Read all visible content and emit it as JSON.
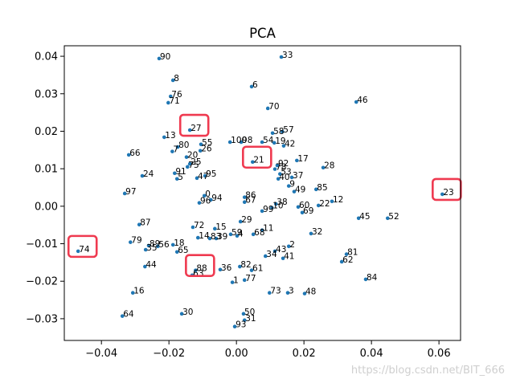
{
  "watermark": "https://blog.csdn.net/BIT_666",
  "chart_data": {
    "type": "scatter",
    "title": "PCA",
    "xlabel": "",
    "ylabel": "",
    "xlim": [
      -0.051,
      0.0664
    ],
    "ylim": [
      -0.0358,
      0.0428
    ],
    "grid": false,
    "point_color": "#1f77b4",
    "highlight_color": "#ef3a50",
    "x_ticks": {
      "values": [
        -0.04,
        -0.02,
        0.0,
        0.02,
        0.04,
        0.06
      ],
      "labels": [
        "−0.04",
        "−0.02",
        "0.00",
        "0.02",
        "0.04",
        "0.06"
      ]
    },
    "y_ticks": {
      "values": [
        -0.03,
        -0.02,
        -0.01,
        0.0,
        0.01,
        0.02,
        0.03,
        0.04
      ],
      "labels": [
        "−0.03",
        "−0.02",
        "−0.01",
        "0.00",
        "0.01",
        "0.02",
        "0.03",
        "0.04"
      ]
    },
    "points": [
      {
        "label": "0",
        "x": -0.0095,
        "y": 0.0028
      },
      {
        "label": "1",
        "x": -0.0012,
        "y": -0.0203
      },
      {
        "label": "2",
        "x": 0.0155,
        "y": -0.0107
      },
      {
        "label": "3",
        "x": 0.0152,
        "y": -0.0231
      },
      {
        "label": "4",
        "x": 0.0002,
        "y": -0.0079
      },
      {
        "label": "5",
        "x": -0.0176,
        "y": 0.0073
      },
      {
        "label": "6",
        "x": 0.0045,
        "y": 0.0319
      },
      {
        "label": "7",
        "x": -0.019,
        "y": 0.0146
      },
      {
        "label": "8",
        "x": -0.0188,
        "y": 0.0336
      },
      {
        "label": "9",
        "x": 0.0155,
        "y": 0.0054
      },
      {
        "label": "10",
        "x": 0.0105,
        "y": -0.0004
      },
      {
        "label": "11",
        "x": 0.0076,
        "y": -0.0064
      },
      {
        "label": "12",
        "x": 0.0283,
        "y": 0.0013
      },
      {
        "label": "13",
        "x": -0.0214,
        "y": 0.0184
      },
      {
        "label": "14",
        "x": -0.0114,
        "y": -0.0084
      },
      {
        "label": "15",
        "x": -0.0064,
        "y": -0.006
      },
      {
        "label": "16",
        "x": -0.0307,
        "y": -0.0231
      },
      {
        "label": "17",
        "x": 0.0179,
        "y": 0.0122
      },
      {
        "label": "18",
        "x": -0.0188,
        "y": -0.0103
      },
      {
        "label": "19",
        "x": 0.0112,
        "y": 0.0169
      },
      {
        "label": "20",
        "x": -0.0148,
        "y": 0.0131
      },
      {
        "label": "21",
        "x": 0.0048,
        "y": 0.0118,
        "highlighted": true
      },
      {
        "label": "22",
        "x": 0.0243,
        "y": 0.0002
      },
      {
        "label": "23",
        "x": 0.061,
        "y": 0.0032,
        "highlighted": true
      },
      {
        "label": "24",
        "x": -0.0279,
        "y": 0.0081
      },
      {
        "label": "25",
        "x": -0.0138,
        "y": 0.0113
      },
      {
        "label": "26",
        "x": -0.0107,
        "y": 0.0148
      },
      {
        "label": "27",
        "x": -0.0138,
        "y": 0.0203,
        "highlighted": true
      },
      {
        "label": "28",
        "x": 0.0257,
        "y": 0.0103
      },
      {
        "label": "29",
        "x": 0.0012,
        "y": -0.0041
      },
      {
        "label": "30",
        "x": -0.0162,
        "y": -0.0287
      },
      {
        "label": "31",
        "x": 0.0024,
        "y": -0.0304
      },
      {
        "label": "32",
        "x": 0.0221,
        "y": -0.0073
      },
      {
        "label": "33",
        "x": 0.0133,
        "y": 0.0398
      },
      {
        "label": "34",
        "x": 0.0086,
        "y": -0.0133
      },
      {
        "label": "35",
        "x": -0.0269,
        "y": -0.0116
      },
      {
        "label": "36",
        "x": -0.0048,
        "y": -0.0169
      },
      {
        "label": "37",
        "x": 0.0164,
        "y": 0.0077
      },
      {
        "label": "38",
        "x": 0.0117,
        "y": 0.0006
      },
      {
        "label": "39",
        "x": -0.006,
        "y": -0.0086
      },
      {
        "label": "40",
        "x": 0.0124,
        "y": 0.0073
      },
      {
        "label": "41",
        "x": 0.0138,
        "y": -0.0139
      },
      {
        "label": "42",
        "x": 0.014,
        "y": 0.0161
      },
      {
        "label": "43",
        "x": 0.0114,
        "y": -0.012
      },
      {
        "label": "44",
        "x": -0.0271,
        "y": -0.0161
      },
      {
        "label": "45",
        "x": 0.0362,
        "y": -0.0032
      },
      {
        "label": "46",
        "x": 0.0355,
        "y": 0.0278
      },
      {
        "label": "47",
        "x": -0.0117,
        "y": 0.0075
      },
      {
        "label": "48",
        "x": 0.0202,
        "y": -0.0233
      },
      {
        "label": "49",
        "x": 0.0171,
        "y": 0.0039
      },
      {
        "label": "50",
        "x": 0.0021,
        "y": -0.0287
      },
      {
        "label": "52",
        "x": 0.0448,
        "y": -0.0032
      },
      {
        "label": "53",
        "x": 0.0129,
        "y": 0.0086
      },
      {
        "label": "54",
        "x": 0.0076,
        "y": 0.0171
      },
      {
        "label": "55",
        "x": -0.0105,
        "y": 0.0165
      },
      {
        "label": "56",
        "x": -0.0233,
        "y": -0.0107
      },
      {
        "label": "57",
        "x": 0.0136,
        "y": 0.0199
      },
      {
        "label": "58",
        "x": 0.0107,
        "y": 0.0195
      },
      {
        "label": "59",
        "x": -0.0017,
        "y": -0.0075
      },
      {
        "label": "60",
        "x": 0.0183,
        "y": -0.0002
      },
      {
        "label": "61",
        "x": 0.0045,
        "y": -0.0171
      },
      {
        "label": "62",
        "x": 0.0312,
        "y": -0.0148
      },
      {
        "label": "63",
        "x": -0.0131,
        "y": -0.0184
      },
      {
        "label": "64",
        "x": -0.0338,
        "y": -0.0293
      },
      {
        "label": "65",
        "x": -0.0176,
        "y": -0.0122
      },
      {
        "label": "66",
        "x": -0.0319,
        "y": 0.0137
      },
      {
        "label": "67",
        "x": 0.0024,
        "y": 0.0011
      },
      {
        "label": "68",
        "x": 0.005,
        "y": -0.0075
      },
      {
        "label": "69",
        "x": 0.0195,
        "y": -0.0017
      },
      {
        "label": "70",
        "x": 0.0093,
        "y": 0.0261
      },
      {
        "label": "71",
        "x": -0.0202,
        "y": 0.0276
      },
      {
        "label": "72",
        "x": -0.0129,
        "y": -0.0056
      },
      {
        "label": "73",
        "x": 0.0098,
        "y": -0.0231
      },
      {
        "label": "74",
        "x": -0.0469,
        "y": -0.012,
        "highlighted": true
      },
      {
        "label": "75",
        "x": -0.0145,
        "y": 0.0105
      },
      {
        "label": "76",
        "x": -0.0195,
        "y": 0.0293
      },
      {
        "label": "77",
        "x": 0.0024,
        "y": -0.0197
      },
      {
        "label": "78",
        "x": 0.0114,
        "y": 0.0099
      },
      {
        "label": "79",
        "x": -0.0314,
        "y": -0.0096
      },
      {
        "label": "80",
        "x": -0.0174,
        "y": 0.0158
      },
      {
        "label": "81",
        "x": 0.0326,
        "y": -0.0128
      },
      {
        "label": "82",
        "x": 0.001,
        "y": -0.0161
      },
      {
        "label": "83",
        "x": -0.0079,
        "y": -0.0086
      },
      {
        "label": "84",
        "x": 0.0383,
        "y": -0.0195
      },
      {
        "label": "85",
        "x": 0.0236,
        "y": 0.0045
      },
      {
        "label": "86",
        "x": 0.0024,
        "y": 0.0024
      },
      {
        "label": "87",
        "x": -0.0288,
        "y": -0.0049
      },
      {
        "label": "88",
        "x": -0.0121,
        "y": -0.0171,
        "highlighted": true
      },
      {
        "label": "89",
        "x": -0.026,
        "y": -0.0105
      },
      {
        "label": "90",
        "x": -0.0229,
        "y": 0.0394
      },
      {
        "label": "91",
        "x": -0.0183,
        "y": 0.0088
      },
      {
        "label": "92",
        "x": 0.0121,
        "y": 0.0109
      },
      {
        "label": "93",
        "x": -0.0005,
        "y": -0.0321
      },
      {
        "label": "94",
        "x": -0.0076,
        "y": 0.0017
      },
      {
        "label": "95",
        "x": -0.0093,
        "y": 0.0081
      },
      {
        "label": "96",
        "x": -0.011,
        "y": 0.0009
      },
      {
        "label": "97",
        "x": -0.0331,
        "y": 0.0034
      },
      {
        "label": "98",
        "x": 0.0014,
        "y": 0.0171
      },
      {
        "label": "99",
        "x": 0.0076,
        "y": -0.0013
      },
      {
        "label": "100",
        "x": -0.0019,
        "y": 0.0171
      }
    ]
  }
}
